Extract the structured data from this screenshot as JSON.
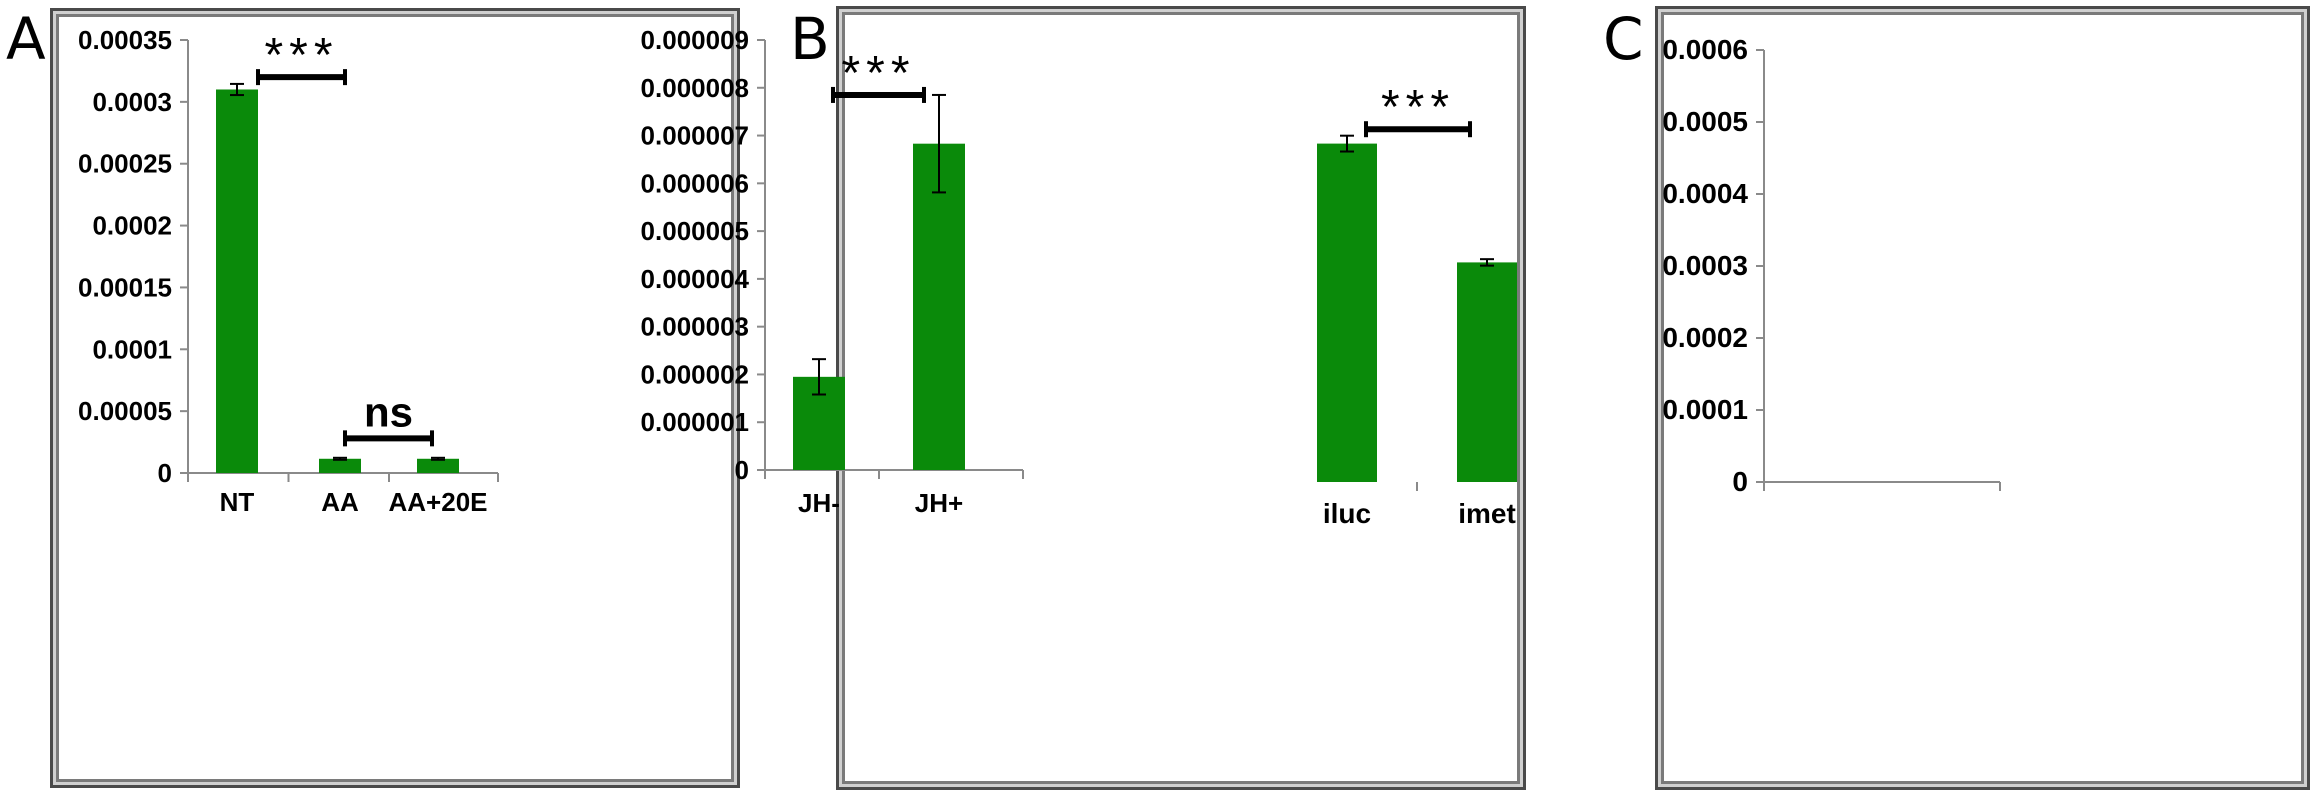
{
  "panels": [
    {
      "letter": "A",
      "chart_data": {
        "type": "bar",
        "categories": [
          "NT",
          "AA",
          "AA+20E"
        ],
        "values": [
          0.00031,
          1.15e-05,
          1.15e-05
        ],
        "errors": [
          4.5e-06,
          8e-07,
          8e-07
        ],
        "ylim": [
          0,
          0.00035
        ],
        "yticks": [
          0,
          5e-05,
          0.0001,
          0.00015,
          0.0002,
          0.00025,
          0.0003,
          0.00035
        ],
        "ytick_labels": [
          "0",
          "0.00005",
          "0.0001",
          "0.00015",
          "0.0002",
          "0.00025",
          "0.0003",
          "0.00035"
        ],
        "bar_color": "#0a8a0a",
        "annotations": [
          {
            "text": "***",
            "from": 0,
            "to": 1,
            "y": 0.00032
          },
          {
            "text": "ns",
            "from": 1,
            "to": 2,
            "y": 2.8e-05
          }
        ]
      }
    },
    {
      "letter": "B",
      "chart_data": {
        "type": "bar",
        "categories": [
          "JH-",
          "JH+"
        ],
        "values": [
          1.95e-06,
          6.83e-06
        ],
        "errors": [
          3.7e-07,
          1.02e-06
        ],
        "ylim": [
          0,
          9e-06
        ],
        "yticks": [
          0,
          1e-06,
          2e-06,
          3e-06,
          4e-06,
          5e-06,
          6e-06,
          7e-06,
          8e-06,
          9e-06
        ],
        "ytick_labels": [
          "0",
          "0.000001",
          "0.000002",
          "0.000003",
          "0.000004",
          "0.000005",
          "0.000006",
          "0.000007",
          "0.000008",
          "0.000009"
        ],
        "bar_color": "#0a8a0a",
        "annotations": [
          {
            "text": "***",
            "from": 0,
            "to": 1,
            "y": 7.85e-06
          }
        ]
      }
    },
    {
      "letter": "C",
      "chart_data": {
        "type": "bar",
        "categories": [
          "iluc",
          "imet"
        ],
        "values": [
          0.00047,
          0.000305
        ],
        "errors": [
          1.1e-05,
          4.5e-06
        ],
        "ylim": [
          0,
          0.0006
        ],
        "yticks": [
          0,
          0.0001,
          0.0002,
          0.0003,
          0.0004,
          0.0005,
          0.0006
        ],
        "ytick_labels": [
          "0",
          "0.0001",
          "0.0002",
          "0.0003",
          "0.0004",
          "0.0005",
          "0.0006"
        ],
        "bar_color": "#0a8a0a",
        "annotations": [
          {
            "text": "***",
            "from": 0,
            "to": 1,
            "y": 0.00049
          }
        ]
      }
    }
  ]
}
